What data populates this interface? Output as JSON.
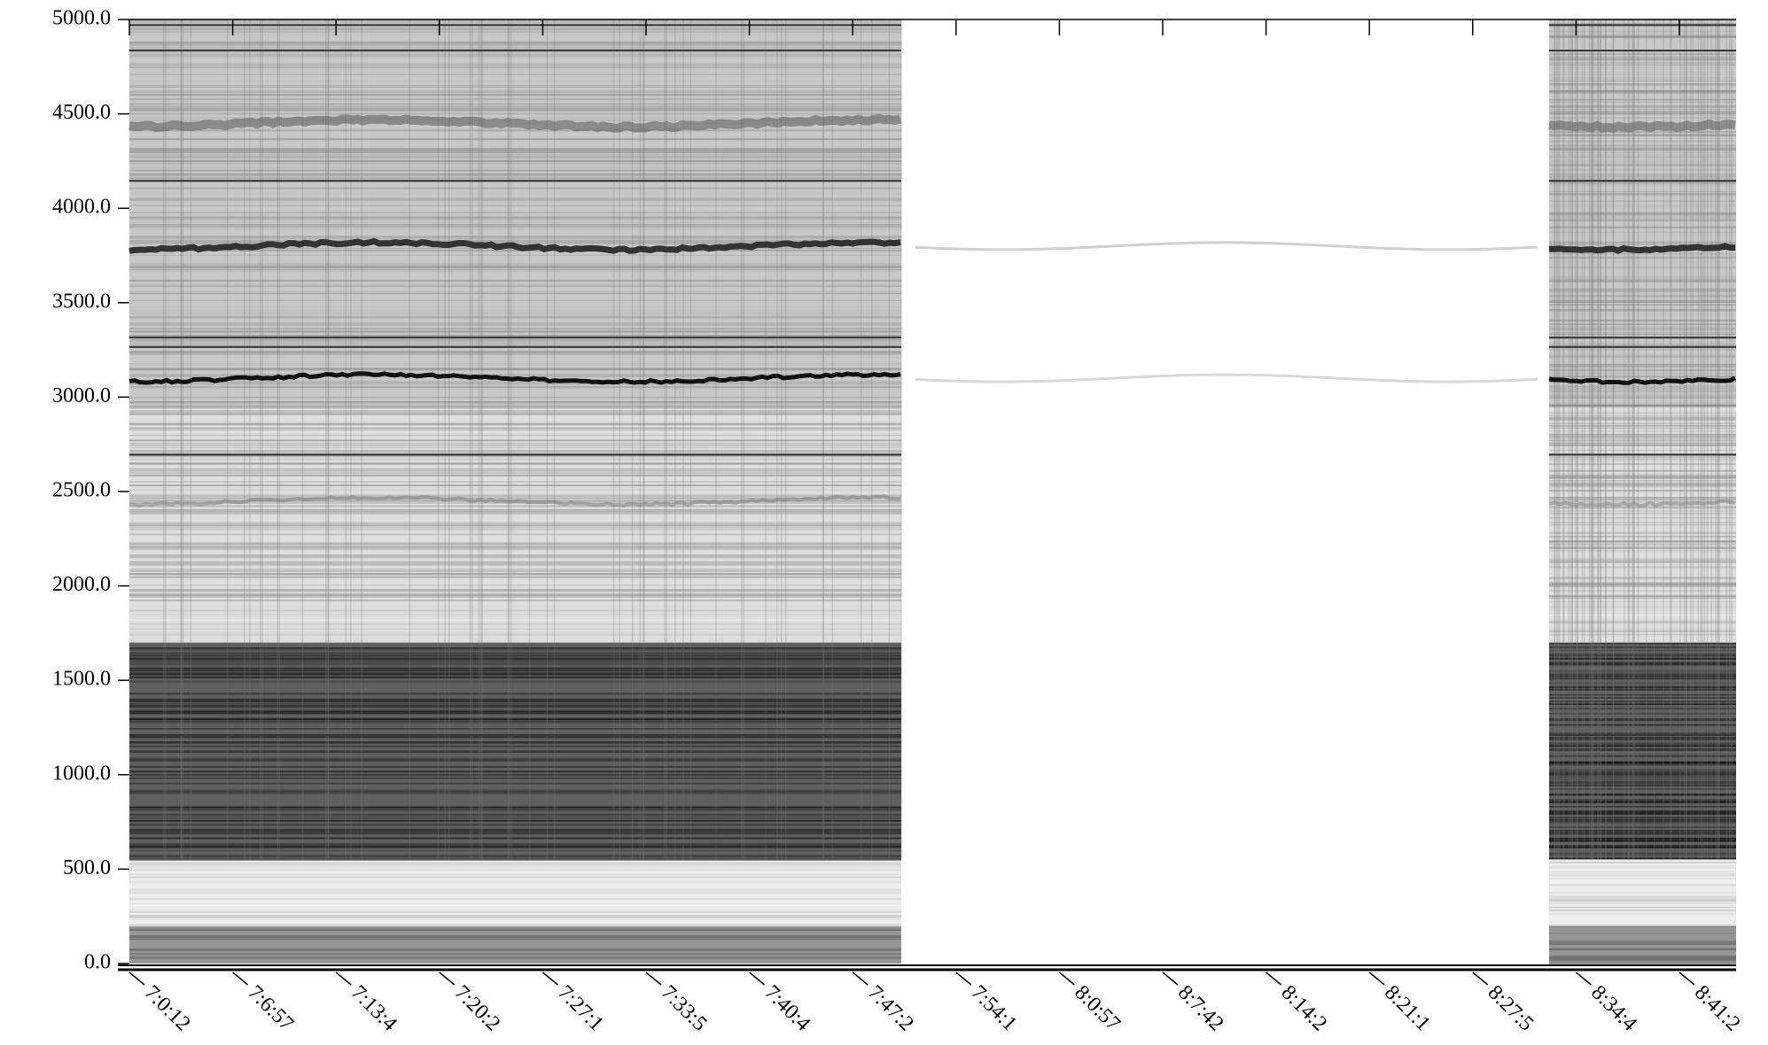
{
  "chart_data": {
    "type": "spectrogram",
    "categories": [
      "7:0:12",
      "7:6:57",
      "7:13:4",
      "7:20:2",
      "7:27:1",
      "7:33:5",
      "7:40:4",
      "7:47:2",
      "7:54:1",
      "8:0:57",
      "8:7:42",
      "8:14:2",
      "8:21:1",
      "8:27:5",
      "8:34:4",
      "8:41:2"
    ],
    "ylim": [
      0,
      5000
    ],
    "yticks": [
      {
        "value": 0,
        "label": "0.0"
      },
      {
        "value": 500,
        "label": "500.0"
      },
      {
        "value": 1000,
        "label": "1000.0"
      },
      {
        "value": 1500,
        "label": "1500.0"
      },
      {
        "value": 2000,
        "label": "2000.0"
      },
      {
        "value": 2500,
        "label": "2500.0"
      },
      {
        "value": 3000,
        "label": "3000.0"
      },
      {
        "value": 3500,
        "label": "3500.0"
      },
      {
        "value": 4000,
        "label": "4000.0"
      },
      {
        "value": 4500,
        "label": "4500.0"
      },
      {
        "value": 5000,
        "label": "5000.0"
      }
    ]
  }
}
